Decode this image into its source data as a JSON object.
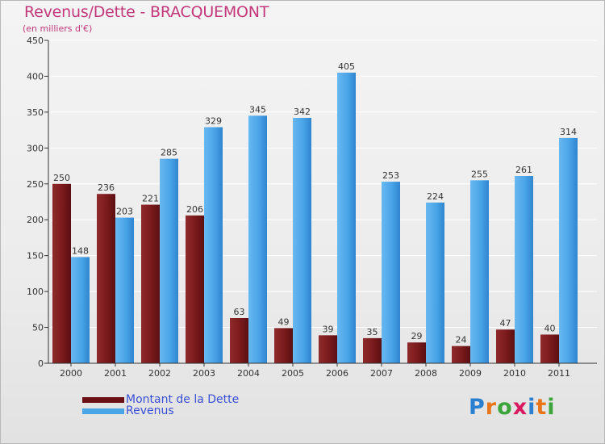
{
  "chart_data": {
    "type": "bar",
    "title": "Revenus/Dette - BRACQUEMONT",
    "subtitle": "(en milliers d'€)",
    "categories": [
      "2000",
      "2001",
      "2002",
      "2003",
      "2004",
      "2005",
      "2006",
      "2007",
      "2008",
      "2009",
      "2010",
      "2011"
    ],
    "yticks": [
      "0",
      "50",
      "100",
      "150",
      "200",
      "250",
      "300",
      "350",
      "400",
      "450"
    ],
    "ylim": [
      0,
      450
    ],
    "grid": true,
    "legend_position": "bottom-left",
    "series": [
      {
        "name": "Montant de la Dette",
        "color": "#7a1a1c",
        "values": [
          250,
          236,
          221,
          206,
          63,
          49,
          39,
          35,
          29,
          24,
          47,
          40
        ]
      },
      {
        "name": "Revenus",
        "color": "#4aa4e8",
        "values": [
          148,
          203,
          285,
          329,
          345,
          342,
          405,
          253,
          224,
          255,
          261,
          314
        ]
      }
    ]
  },
  "logo": {
    "text": "Proxiti",
    "colors": [
      "#2a7fd0",
      "#e8751a",
      "#3ba53b",
      "#d81b60",
      "#2a7fd0",
      "#e8751a",
      "#3ba53b"
    ]
  }
}
